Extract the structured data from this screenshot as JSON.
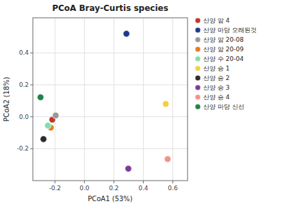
{
  "chart_data": {
    "type": "scatter",
    "title": "PCoA Bray-Curtis species",
    "x_label": "PCoA1 (53%)",
    "y_label": "PCoA2 (18%)",
    "xlim": [
      -0.35,
      0.7
    ],
    "ylim": [
      -0.4,
      0.62
    ],
    "xticks": [
      -0.2,
      {
        "value": 0.0,
        "label": "0.0"
      },
      0.2,
      0.4,
      0.6
    ],
    "yticks": [
      -0.2,
      {
        "value": 0.0,
        "label": "0.0"
      },
      0.2,
      0.4
    ],
    "grid": true,
    "legend": "right",
    "series": [
      {
        "name": "산양 암 4",
        "color": "#C0392B",
        "x": [
          -0.218
        ],
        "values": [
          -0.018
        ]
      },
      {
        "name": "산양 마당 오래된것",
        "color": "#1F3A8A",
        "x": [
          0.285
        ],
        "values": [
          0.52
        ]
      },
      {
        "name": "산양 암 20-08",
        "color": "#999999",
        "x": [
          -0.195
        ],
        "values": [
          0.008
        ]
      },
      {
        "name": "산양 암 20-09",
        "color": "#E67E22",
        "x": [
          -0.228
        ],
        "values": [
          -0.068
        ]
      },
      {
        "name": "산양 수 20-04",
        "color": "#82E0AA",
        "x": [
          -0.248
        ],
        "values": [
          -0.055
        ]
      },
      {
        "name": "산양 승 1",
        "color": "#F4D03F",
        "x": [
          0.552
        ],
        "values": [
          0.08
        ]
      },
      {
        "name": "산양 승 2",
        "color": "#2C2C2C",
        "x": [
          -0.278
        ],
        "values": [
          -0.14
        ]
      },
      {
        "name": "산양 승 3",
        "color": "#7D3C98",
        "x": [
          0.298
        ],
        "values": [
          -0.325
        ]
      },
      {
        "name": "산양 승 4",
        "color": "#F1948A",
        "x": [
          0.565
        ],
        "values": [
          -0.265
        ]
      },
      {
        "name": "산양 마당 신선",
        "color": "#1E8449",
        "x": [
          -0.298
        ],
        "values": [
          0.122
        ]
      }
    ]
  }
}
